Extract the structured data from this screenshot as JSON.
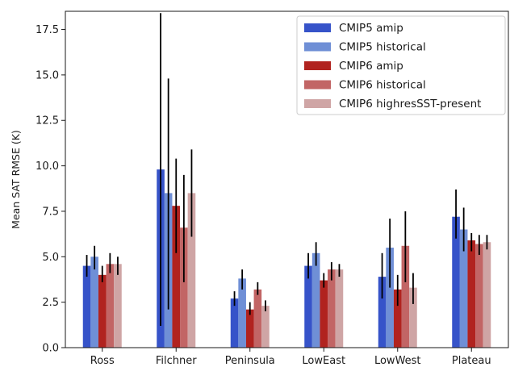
{
  "chart_data": {
    "type": "bar",
    "title": "",
    "xlabel": "",
    "ylabel": "Mean SAT RMSE (K)",
    "ylim": [
      0,
      18.5
    ],
    "yticks": [
      0.0,
      2.5,
      5.0,
      7.5,
      10.0,
      12.5,
      15.0,
      17.5
    ],
    "ytick_labels": [
      "0.0",
      "2.5",
      "5.0",
      "7.5",
      "10.0",
      "12.5",
      "15.0",
      "17.5"
    ],
    "grid": false,
    "legend_position": "top-right",
    "categories": [
      "Ross",
      "Filchner",
      "Peninsula",
      "LowEast",
      "LowWest",
      "Plateau"
    ],
    "series": [
      {
        "name": "CMIP5 amip",
        "color": "#3653c9",
        "values": [
          4.5,
          9.8,
          2.7,
          4.5,
          3.9,
          7.2
        ],
        "err_low": [
          3.9,
          1.2,
          2.3,
          3.8,
          2.7,
          6.0
        ],
        "err_high": [
          5.1,
          18.4,
          3.1,
          5.2,
          5.2,
          8.7
        ]
      },
      {
        "name": "CMIP5 historical",
        "color": "#6f8fd6",
        "values": [
          5.0,
          8.5,
          3.8,
          5.2,
          5.5,
          6.5
        ],
        "err_low": [
          4.3,
          2.1,
          3.2,
          4.5,
          3.3,
          5.3
        ],
        "err_high": [
          5.6,
          14.8,
          4.3,
          5.8,
          7.1,
          7.7
        ]
      },
      {
        "name": "CMIP6 amip",
        "color": "#b1231f",
        "values": [
          4.0,
          7.8,
          2.1,
          3.7,
          3.2,
          5.9
        ],
        "err_low": [
          3.6,
          5.2,
          1.8,
          3.3,
          2.3,
          5.3
        ],
        "err_high": [
          4.5,
          10.4,
          2.5,
          4.1,
          4.0,
          6.3
        ]
      },
      {
        "name": "CMIP6 historical",
        "color": "#c26565",
        "values": [
          4.6,
          6.6,
          3.2,
          4.3,
          5.6,
          5.7
        ],
        "err_low": [
          4.1,
          3.6,
          2.9,
          3.7,
          3.6,
          5.1
        ],
        "err_high": [
          5.2,
          9.5,
          3.6,
          4.7,
          7.5,
          6.2
        ]
      },
      {
        "name": "CMIP6 highresSST-present",
        "color": "#cfa5a5",
        "values": [
          4.6,
          8.5,
          2.3,
          4.3,
          3.3,
          5.8
        ],
        "err_low": [
          4.0,
          6.1,
          2.0,
          3.9,
          2.4,
          5.4
        ],
        "err_high": [
          5.0,
          10.9,
          2.6,
          4.6,
          4.1,
          6.2
        ]
      }
    ]
  }
}
